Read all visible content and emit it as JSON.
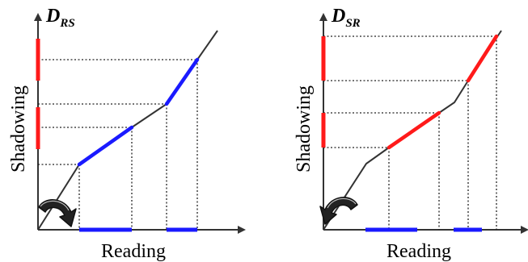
{
  "colors": {
    "axis": "#333333",
    "curve": "#333333",
    "guide": "#222222",
    "blue": "#1a1aff",
    "red": "#ff1a1a",
    "arrow": "#222222"
  },
  "panels": [
    {
      "title_main": "D",
      "title_sub": "RS",
      "xlabel": "Reading",
      "ylabel": "Shadowing",
      "highlight": "blue",
      "axis_highlight": "red",
      "arrow": "return-arrow-icon"
    },
    {
      "title_main": "D",
      "title_sub": "SR",
      "xlabel": "Reading",
      "ylabel": "Shadowing",
      "highlight": "red",
      "axis_highlight": "blue",
      "arrow": "return-arrow-icon"
    }
  ]
}
